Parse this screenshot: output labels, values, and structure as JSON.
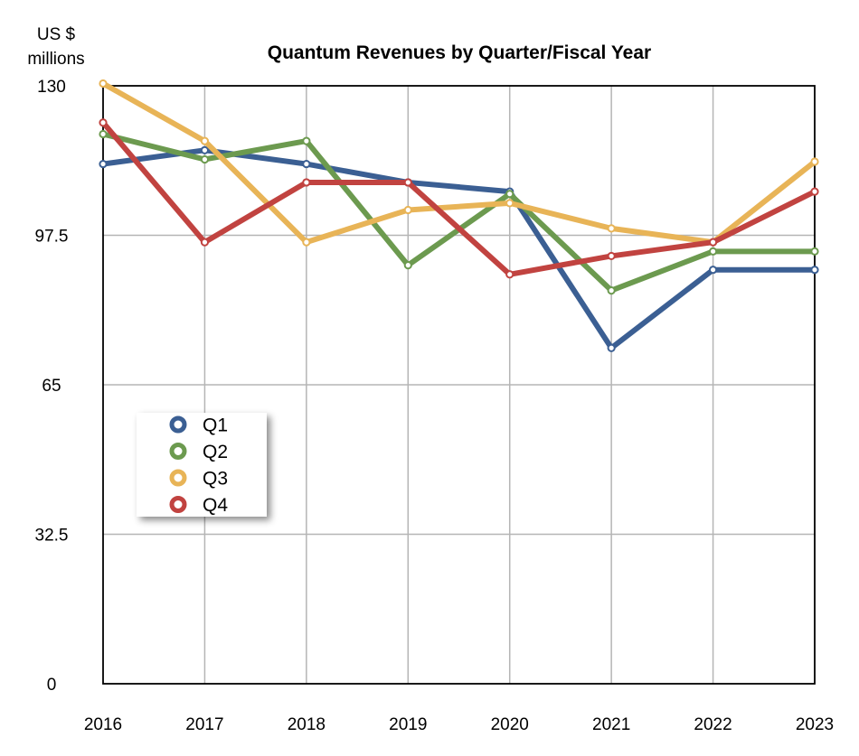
{
  "chart_data": {
    "type": "line",
    "title": "Quantum Revenues by Quarter/Fiscal Year",
    "ylabel_line1": "US $",
    "ylabel_line2": "millions",
    "x": [
      "2016",
      "2017",
      "2018",
      "2019",
      "2020",
      "2021",
      "2022",
      "2023"
    ],
    "ylim": [
      0,
      130
    ],
    "yticks": [
      0,
      32.5,
      65,
      97.5,
      130
    ],
    "ytick_labels": [
      "0",
      "32.5",
      "65",
      "97.5",
      "130"
    ],
    "grid": true,
    "legend_position": "left-middle",
    "series": [
      {
        "name": "Q1",
        "color": "#3b5f93",
        "values": [
          113,
          116,
          113,
          109,
          107,
          73,
          90,
          90
        ]
      },
      {
        "name": "Q2",
        "color": "#6c9a4f",
        "values": [
          119.5,
          114,
          118,
          91,
          106.5,
          85.5,
          94,
          94
        ]
      },
      {
        "name": "Q3",
        "color": "#e8b457",
        "values": [
          130.5,
          118,
          96,
          103,
          104.5,
          99,
          96,
          113.5
        ]
      },
      {
        "name": "Q4",
        "color": "#c14340",
        "values": [
          122,
          96,
          109,
          109,
          89,
          93,
          96,
          107
        ]
      }
    ]
  }
}
